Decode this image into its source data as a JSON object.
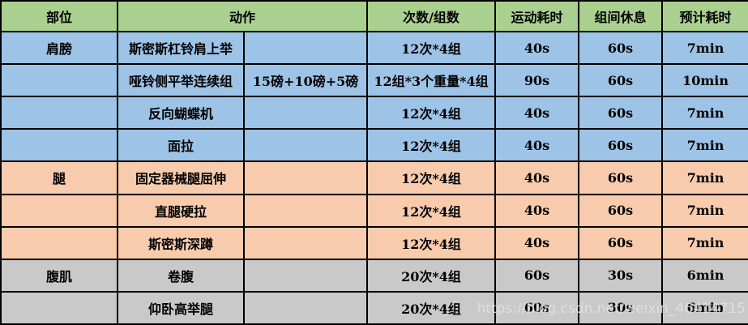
{
  "colors": {
    "header_green": "#A9D08E",
    "section_blue": "#9DC3E6",
    "section_orange": "#F8CBAD",
    "section_gray": "#C9C9C9",
    "border": "#000000",
    "watermark": "#E3E3E3"
  },
  "watermark": {
    "text": "https://blog.csdn.net/weixin_46414715"
  },
  "table": {
    "headers": [
      "部位",
      "动作",
      "次数/组数",
      "运动耗时",
      "组间休息",
      "预计耗时"
    ],
    "rows": [
      {
        "part": "肩膀",
        "action": "斯密斯杠铃肩上举",
        "weight": "",
        "reps": "12次*4组",
        "duration": "40s",
        "rest": "60s",
        "estimate": "7min",
        "section": "blue"
      },
      {
        "part": "",
        "action": "哑铃侧平举连续组",
        "weight": "15磅+10磅+5磅",
        "reps": "12组*3个重量*4组",
        "duration": "90s",
        "rest": "60s",
        "estimate": "10min",
        "section": "blue"
      },
      {
        "part": "",
        "action": "反向蝴蝶机",
        "weight": "",
        "reps": "12次*4组",
        "duration": "40s",
        "rest": "60s",
        "estimate": "7min",
        "section": "blue"
      },
      {
        "part": "",
        "action": "面拉",
        "weight": "",
        "reps": "12次*4组",
        "duration": "40s",
        "rest": "60s",
        "estimate": "7min",
        "section": "blue"
      },
      {
        "part": "腿",
        "action": "固定器械腿屈伸",
        "weight": "",
        "reps": "12次*4组",
        "duration": "40s",
        "rest": "60s",
        "estimate": "7min",
        "section": "orange"
      },
      {
        "part": "",
        "action": "直腿硬拉",
        "weight": "",
        "reps": "12次*4组",
        "duration": "40s",
        "rest": "60s",
        "estimate": "7min",
        "section": "orange"
      },
      {
        "part": "",
        "action": "斯密斯深蹲",
        "weight": "",
        "reps": "12次*4组",
        "duration": "40s",
        "rest": "60s",
        "estimate": "7min",
        "section": "orange"
      },
      {
        "part": "腹肌",
        "action": "卷腹",
        "weight": "",
        "reps": "20次*4组",
        "duration": "60s",
        "rest": "30s",
        "estimate": "6min",
        "section": "gray"
      },
      {
        "part": "",
        "action": "仰卧高举腿",
        "weight": "",
        "reps": "20次*4组",
        "duration": "60s",
        "rest": "30s",
        "estimate": "6min",
        "section": "gray"
      }
    ]
  }
}
